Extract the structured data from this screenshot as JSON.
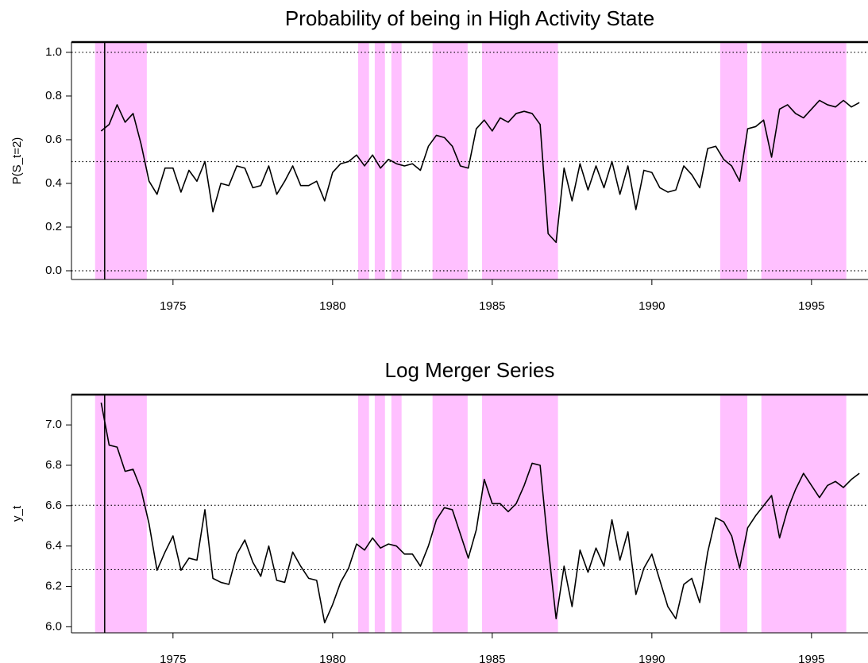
{
  "chart_data": [
    {
      "type": "line",
      "title": "Probability of being in High Activity State",
      "y_label": "P(S_t=2)",
      "x": [
        1972.75,
        1973,
        1973.25,
        1973.5,
        1973.75,
        1974,
        1974.25,
        1974.5,
        1974.75,
        1975,
        1975.25,
        1975.5,
        1975.75,
        1976,
        1976.25,
        1976.5,
        1976.75,
        1977,
        1977.25,
        1977.5,
        1977.75,
        1978,
        1978.25,
        1978.5,
        1978.75,
        1979,
        1979.25,
        1979.5,
        1979.75,
        1980,
        1980.25,
        1980.5,
        1980.75,
        1981,
        1981.25,
        1981.5,
        1981.75,
        1982,
        1982.25,
        1982.5,
        1982.75,
        1983,
        1983.25,
        1983.5,
        1983.75,
        1984,
        1984.25,
        1984.5,
        1984.75,
        1985,
        1985.25,
        1985.5,
        1985.75,
        1986,
        1986.25,
        1986.5,
        1986.75,
        1987,
        1987.25,
        1987.5,
        1987.75,
        1988,
        1988.25,
        1988.5,
        1988.75,
        1989,
        1989.25,
        1989.5,
        1989.75,
        1990,
        1990.25,
        1990.5,
        1990.75,
        1991,
        1991.25,
        1991.5,
        1991.75,
        1992,
        1992.25,
        1992.5,
        1992.75,
        1993,
        1993.25,
        1993.5,
        1993.75,
        1994,
        1994.25,
        1994.5,
        1994.75,
        1995,
        1995.25,
        1995.5,
        1995.75,
        1996,
        1996.25,
        1996.5
      ],
      "values": [
        0.64,
        0.67,
        0.76,
        0.68,
        0.72,
        0.58,
        0.41,
        0.35,
        0.47,
        0.47,
        0.36,
        0.46,
        0.41,
        0.5,
        0.27,
        0.4,
        0.39,
        0.48,
        0.47,
        0.38,
        0.39,
        0.48,
        0.35,
        0.41,
        0.48,
        0.39,
        0.39,
        0.41,
        0.32,
        0.45,
        0.49,
        0.5,
        0.53,
        0.48,
        0.53,
        0.47,
        0.51,
        0.49,
        0.48,
        0.49,
        0.46,
        0.57,
        0.62,
        0.61,
        0.57,
        0.48,
        0.47,
        0.65,
        0.69,
        0.64,
        0.7,
        0.68,
        0.72,
        0.73,
        0.72,
        0.67,
        0.17,
        0.13,
        0.47,
        0.32,
        0.49,
        0.37,
        0.48,
        0.38,
        0.5,
        0.35,
        0.48,
        0.28,
        0.46,
        0.45,
        0.38,
        0.36,
        0.37,
        0.48,
        0.44,
        0.38,
        0.56,
        0.57,
        0.51,
        0.48,
        0.41,
        0.65,
        0.66,
        0.69,
        0.52,
        0.74,
        0.76,
        0.72,
        0.7,
        0.74,
        0.78,
        0.76,
        0.75,
        0.78,
        0.75,
        0.77
      ],
      "color": "#000000",
      "shaded_regions": [
        [
          1972.56,
          1974.18
        ],
        [
          1980.8,
          1981.14
        ],
        [
          1981.32,
          1981.64
        ],
        [
          1981.84,
          1982.16
        ],
        [
          1983.13,
          1984.23
        ],
        [
          1984.68,
          1987.06
        ],
        [
          1992.14,
          1992.99
        ],
        [
          1993.43,
          1996.09
        ]
      ],
      "shade_color": "#ffc0ff",
      "vertical_line_x": 1972.86,
      "hlines": [
        0,
        0.5,
        1
      ],
      "xlim": [
        1971.82,
        1996.77
      ],
      "xticks": [
        1975,
        1980,
        1985,
        1990,
        1995
      ],
      "ylim": [
        -0.04,
        1.047
      ],
      "yticks": [
        {
          "value": 0,
          "label": "0.0"
        },
        0.2,
        0.4,
        0.6,
        0.8,
        {
          "value": 1,
          "label": "1.0"
        }
      ]
    },
    {
      "type": "line",
      "title": "Log Merger Series",
      "y_label": "y_t",
      "x": [
        1972.75,
        1973,
        1973.25,
        1973.5,
        1973.75,
        1974,
        1974.25,
        1974.5,
        1974.75,
        1975,
        1975.25,
        1975.5,
        1975.75,
        1976,
        1976.25,
        1976.5,
        1976.75,
        1977,
        1977.25,
        1977.5,
        1977.75,
        1978,
        1978.25,
        1978.5,
        1978.75,
        1979,
        1979.25,
        1979.5,
        1979.75,
        1980,
        1980.25,
        1980.5,
        1980.75,
        1981,
        1981.25,
        1981.5,
        1981.75,
        1982,
        1982.25,
        1982.5,
        1982.75,
        1983,
        1983.25,
        1983.5,
        1983.75,
        1984,
        1984.25,
        1984.5,
        1984.75,
        1985,
        1985.25,
        1985.5,
        1985.75,
        1986,
        1986.25,
        1986.5,
        1986.75,
        1987,
        1987.25,
        1987.5,
        1987.75,
        1988,
        1988.25,
        1988.5,
        1988.75,
        1989,
        1989.25,
        1989.5,
        1989.75,
        1990,
        1990.25,
        1990.5,
        1990.75,
        1991,
        1991.25,
        1991.5,
        1991.75,
        1992,
        1992.25,
        1992.5,
        1992.75,
        1993,
        1993.25,
        1993.5,
        1993.75,
        1994,
        1994.25,
        1994.5,
        1994.75,
        1995,
        1995.25,
        1995.5,
        1995.75,
        1996,
        1996.25,
        1996.5
      ],
      "values": [
        7.11,
        6.9,
        6.89,
        6.77,
        6.78,
        6.68,
        6.51,
        6.28,
        6.37,
        6.45,
        6.28,
        6.34,
        6.33,
        6.58,
        6.24,
        6.22,
        6.21,
        6.36,
        6.43,
        6.32,
        6.25,
        6.4,
        6.23,
        6.22,
        6.37,
        6.3,
        6.24,
        6.23,
        6.02,
        6.11,
        6.22,
        6.29,
        6.41,
        6.38,
        6.44,
        6.39,
        6.41,
        6.4,
        6.36,
        6.36,
        6.3,
        6.4,
        6.53,
        6.59,
        6.58,
        6.46,
        6.34,
        6.48,
        6.73,
        6.61,
        6.61,
        6.57,
        6.61,
        6.7,
        6.81,
        6.8,
        6.4,
        6.04,
        6.3,
        6.1,
        6.38,
        6.27,
        6.39,
        6.3,
        6.53,
        6.33,
        6.47,
        6.16,
        6.29,
        6.36,
        6.23,
        6.1,
        6.04,
        6.21,
        6.24,
        6.12,
        6.37,
        6.54,
        6.52,
        6.45,
        6.29,
        6.49,
        6.55,
        6.6,
        6.65,
        6.44,
        6.58,
        6.68,
        6.76,
        6.7,
        6.64,
        6.7,
        6.72,
        6.69,
        6.73,
        6.76
      ],
      "color": "#000000",
      "shaded_regions": [
        [
          1972.56,
          1974.18
        ],
        [
          1980.8,
          1981.14
        ],
        [
          1981.32,
          1981.64
        ],
        [
          1981.84,
          1982.16
        ],
        [
          1983.13,
          1984.23
        ],
        [
          1984.68,
          1987.06
        ],
        [
          1992.14,
          1992.99
        ],
        [
          1993.43,
          1996.09
        ]
      ],
      "shade_color": "#ffc0ff",
      "vertical_line_x": 1972.86,
      "hlines": [
        6.283,
        6.602
      ],
      "xlim": [
        1971.82,
        1996.77
      ],
      "xticks": [
        1975,
        1980,
        1985,
        1990,
        1995
      ],
      "ylim": [
        5.97,
        7.15
      ],
      "yticks": [
        {
          "value": 6,
          "label": "6.0"
        },
        6.2,
        6.4,
        6.6,
        6.8,
        {
          "value": 7,
          "label": "7.0"
        }
      ]
    }
  ]
}
